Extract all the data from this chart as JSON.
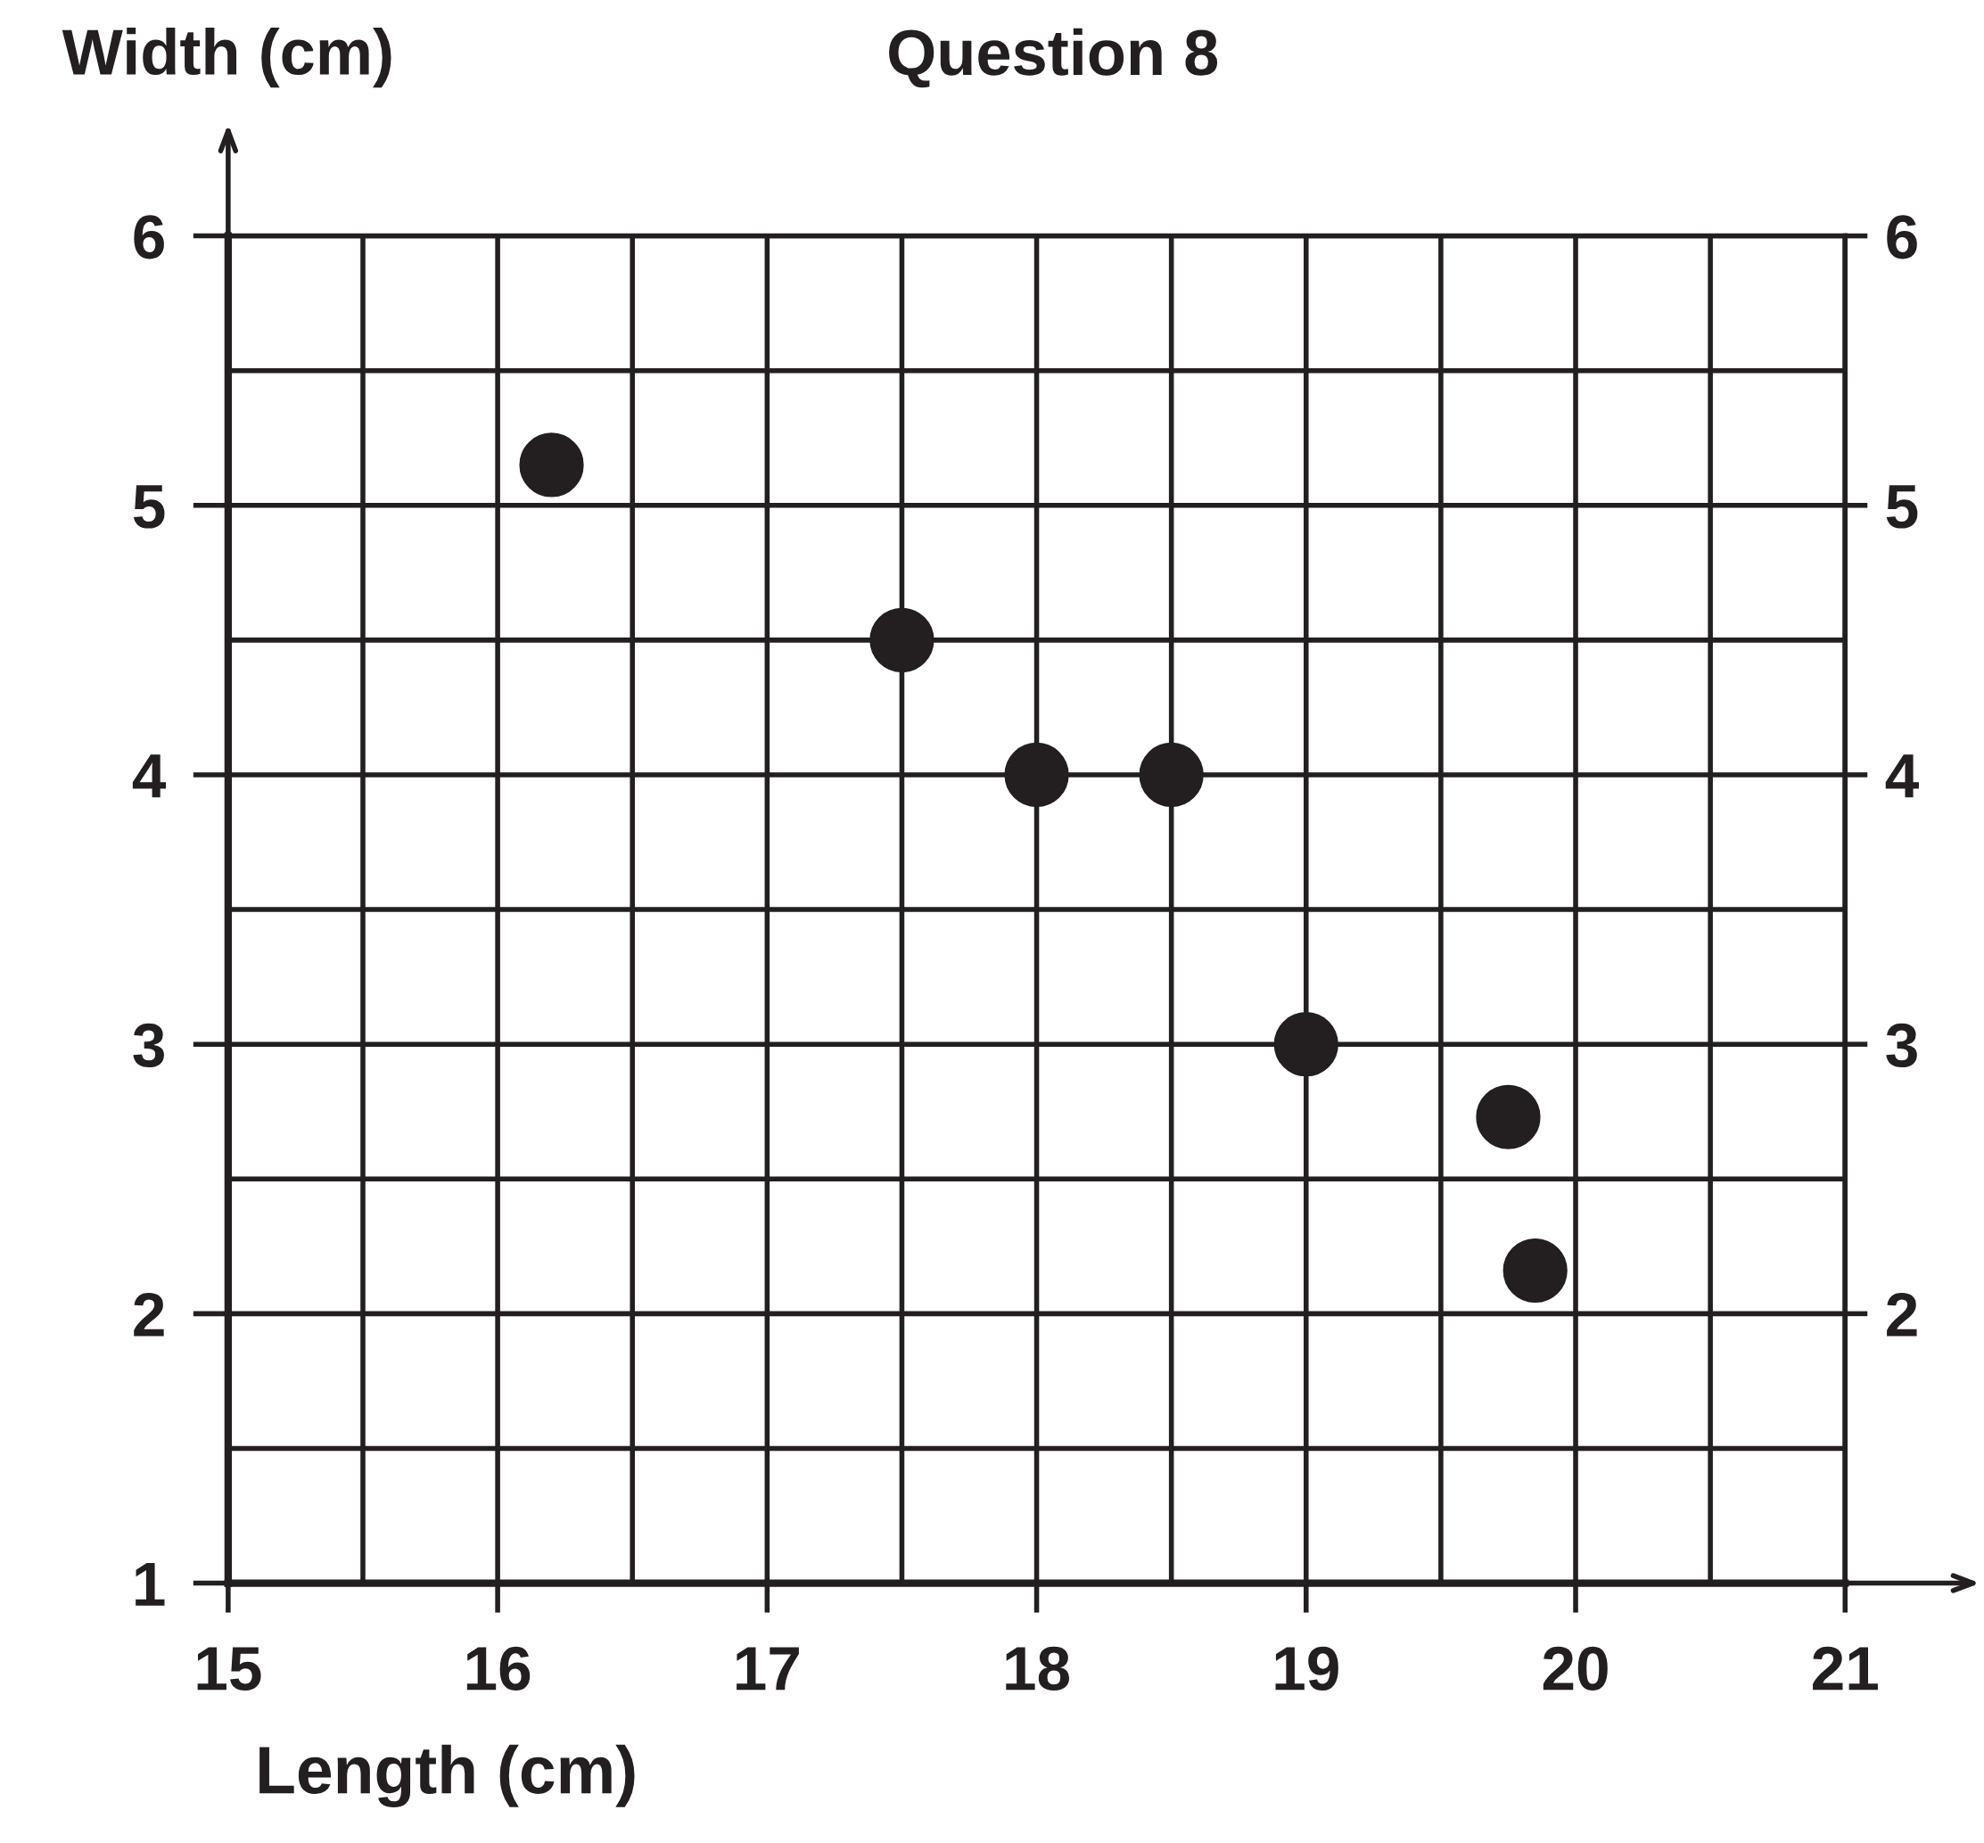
{
  "chart_data": {
    "type": "scatter",
    "title": "Question 8",
    "xlabel": "Length (cm)",
    "ylabel": "Width (cm)",
    "x": [
      16.2,
      17.5,
      18,
      18.5,
      19,
      19.75,
      19.85
    ],
    "series": [
      {
        "color": "#231f20",
        "values": [
          5.15,
          4.5,
          4,
          4,
          3,
          2.73,
          2.16
        ]
      }
    ],
    "xlim": [
      15,
      21
    ],
    "ylim": [
      1,
      6
    ],
    "y2lim": [
      1,
      6
    ],
    "xticks": [
      15,
      {
        "value": 15.5,
        "label": null
      },
      16,
      {
        "value": 16.5,
        "label": null
      },
      17,
      {
        "value": 17.5,
        "label": null
      },
      18,
      {
        "value": 18.5,
        "label": null
      },
      19,
      {
        "value": 19.5,
        "label": null
      },
      20,
      {
        "value": 20.5,
        "label": null
      },
      21
    ],
    "yticks": [
      1,
      {
        "value": 1.5,
        "label": null
      },
      2,
      {
        "value": 2.5,
        "label": null
      },
      3,
      {
        "value": 3.5,
        "label": null
      },
      4,
      {
        "value": 4.5,
        "label": null
      },
      5,
      {
        "value": 5.5,
        "label": null
      },
      6
    ],
    "y2ticks": [
      2,
      3,
      4,
      5,
      6
    ],
    "grid": true,
    "marker": "circle",
    "legend": false
  }
}
